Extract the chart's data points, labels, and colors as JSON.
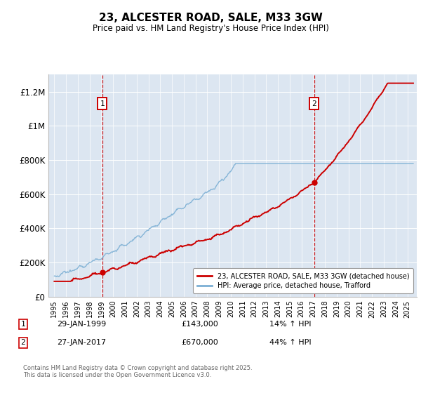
{
  "title": "23, ALCESTER ROAD, SALE, M33 3GW",
  "subtitle": "Price paid vs. HM Land Registry's House Price Index (HPI)",
  "ylabel_ticks": [
    "£0",
    "£200K",
    "£400K",
    "£600K",
    "£800K",
    "£1M",
    "£1.2M"
  ],
  "ytick_values": [
    0,
    200000,
    400000,
    600000,
    800000,
    1000000,
    1200000
  ],
  "ylim": [
    0,
    1300000
  ],
  "xlim_start": 1994.5,
  "xlim_end": 2025.8,
  "bg_color": "#dce6f1",
  "line_color_house": "#cc0000",
  "line_color_hpi": "#7bafd4",
  "sale1_x": 1999.08,
  "sale1_y": 143000,
  "sale2_x": 2017.07,
  "sale2_y": 670000,
  "vline_color": "#cc0000",
  "annotation_box_color": "#cc0000",
  "legend_label_house": "23, ALCESTER ROAD, SALE, M33 3GW (detached house)",
  "legend_label_hpi": "HPI: Average price, detached house, Trafford",
  "footer_text": "Contains HM Land Registry data © Crown copyright and database right 2025.\nThis data is licensed under the Open Government Licence v3.0.",
  "annot1_date": "29-JAN-1999",
  "annot1_price": "£143,000",
  "annot1_hpi": "14% ↑ HPI",
  "annot2_date": "27-JAN-2017",
  "annot2_price": "£670,000",
  "annot2_hpi": "44% ↑ HPI",
  "xtick_years": [
    1995,
    1996,
    1997,
    1998,
    1999,
    2000,
    2001,
    2002,
    2003,
    2004,
    2005,
    2006,
    2007,
    2008,
    2009,
    2010,
    2011,
    2012,
    2013,
    2014,
    2015,
    2016,
    2017,
    2018,
    2019,
    2020,
    2021,
    2022,
    2023,
    2024,
    2025
  ],
  "figwidth": 6.0,
  "figheight": 5.6,
  "dpi": 100
}
